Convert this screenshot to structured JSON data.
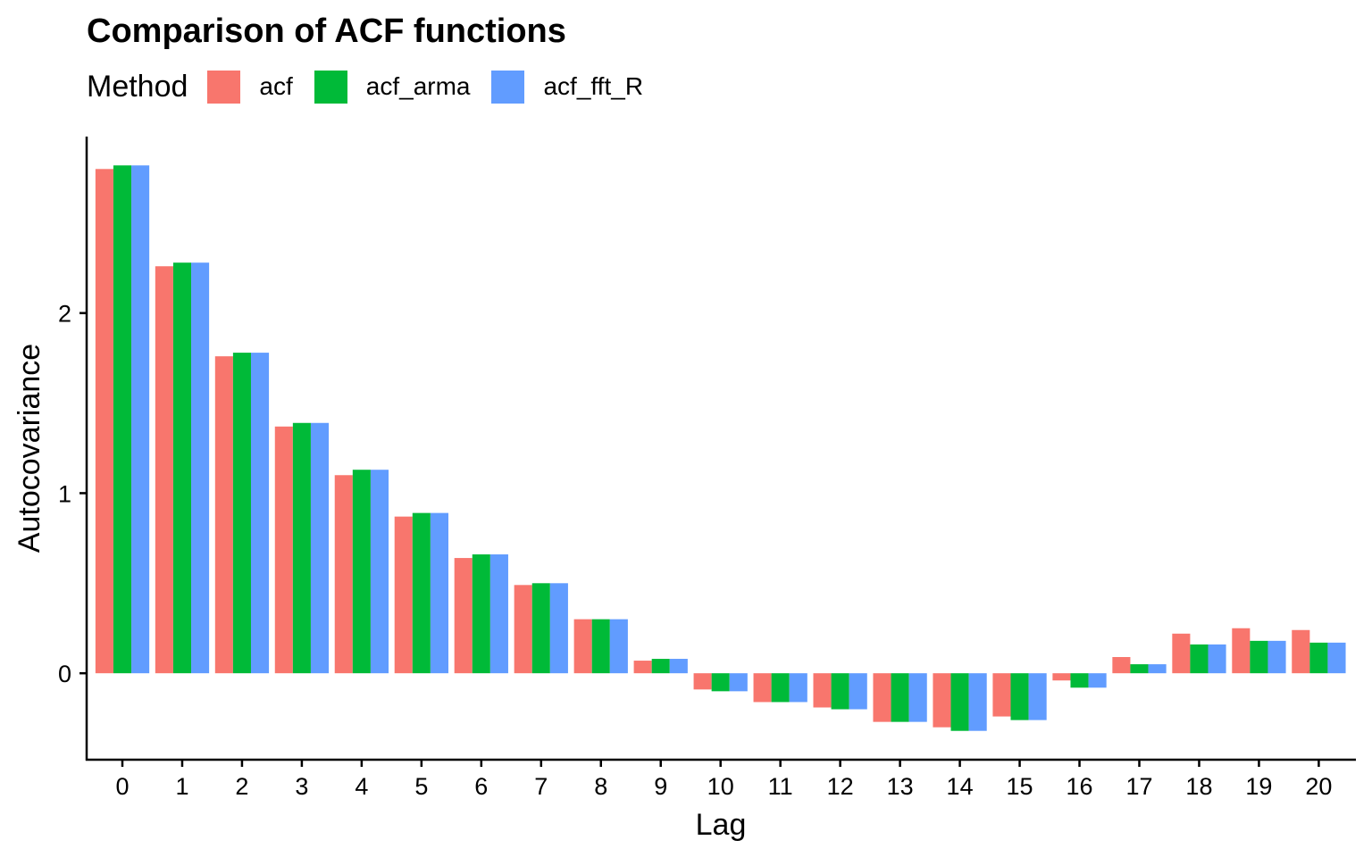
{
  "chart_data": {
    "type": "bar",
    "title": "Comparison of ACF functions",
    "xlabel": "Lag",
    "ylabel": "Autocovariance",
    "legend_title": "Method",
    "legend_position": "top-left",
    "grid": false,
    "ylim": [
      -0.48,
      2.98
    ],
    "yticks": [
      0,
      1,
      2
    ],
    "categories": [
      "0",
      "1",
      "2",
      "3",
      "4",
      "5",
      "6",
      "7",
      "8",
      "9",
      "10",
      "11",
      "12",
      "13",
      "14",
      "15",
      "16",
      "17",
      "18",
      "19",
      "20"
    ],
    "series": [
      {
        "name": "acf",
        "color": "#F8766D",
        "values": [
          2.8,
          2.26,
          1.76,
          1.37,
          1.1,
          0.87,
          0.64,
          0.49,
          0.3,
          0.07,
          -0.09,
          -0.16,
          -0.19,
          -0.27,
          -0.3,
          -0.24,
          -0.04,
          0.09,
          0.22,
          0.25,
          0.24
        ]
      },
      {
        "name": "acf_arma",
        "color": "#00BA38",
        "values": [
          2.82,
          2.28,
          1.78,
          1.39,
          1.13,
          0.89,
          0.66,
          0.5,
          0.3,
          0.08,
          -0.1,
          -0.16,
          -0.2,
          -0.27,
          -0.32,
          -0.26,
          -0.08,
          0.05,
          0.16,
          0.18,
          0.17
        ]
      },
      {
        "name": "acf_fft_R",
        "color": "#619CFF",
        "values": [
          2.82,
          2.28,
          1.78,
          1.39,
          1.13,
          0.89,
          0.66,
          0.5,
          0.3,
          0.08,
          -0.1,
          -0.16,
          -0.2,
          -0.27,
          -0.32,
          -0.26,
          -0.08,
          0.05,
          0.16,
          0.18,
          0.17
        ]
      }
    ]
  }
}
